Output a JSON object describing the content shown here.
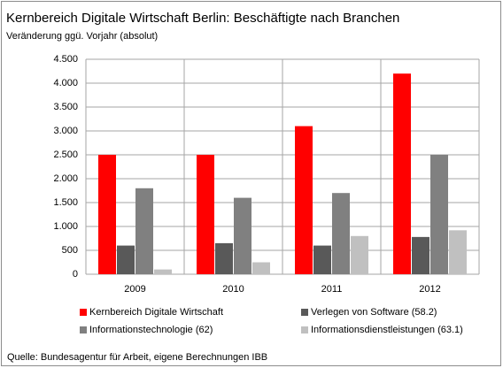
{
  "chart_data": {
    "type": "bar",
    "title": "Kernbereich Digitale Wirtschaft Berlin: Beschäftigte nach Branchen",
    "subtitle": "Veränderung ggü. Vorjahr (absolut)",
    "source": "Quelle: Bundesagentur für Arbeit, eigene Berechnungen IBB",
    "categories": [
      "2009",
      "2010",
      "2011",
      "2012"
    ],
    "series": [
      {
        "name": "Kernbereich Digitale Wirtschaft",
        "color": "#ff0000",
        "values": [
          2500,
          2500,
          3100,
          4200
        ]
      },
      {
        "name": "Verlegen von Software (58.2)",
        "color": "#595959",
        "values": [
          600,
          650,
          600,
          780
        ]
      },
      {
        "name": "Informationstechnologie (62)",
        "color": "#808080",
        "values": [
          1800,
          1600,
          1700,
          2500
        ]
      },
      {
        "name": "Informationsdienstleistungen (63.1)",
        "color": "#c0c0c0",
        "values": [
          100,
          250,
          800,
          920
        ]
      }
    ],
    "ylim": [
      0,
      4500
    ],
    "yticks": [
      0,
      {
        "value": 500,
        "label": "500"
      },
      {
        "value": 1000,
        "label": "1.000"
      },
      {
        "value": 1500,
        "label": "1.500"
      },
      {
        "value": 2000,
        "label": "2.000"
      },
      {
        "value": 2500,
        "label": "2.500"
      },
      {
        "value": 3000,
        "label": "3.000"
      },
      {
        "value": 3500,
        "label": "3.500"
      },
      {
        "value": 4000,
        "label": "4.000"
      },
      {
        "value": 4500,
        "label": "4.500"
      }
    ],
    "grid": true
  }
}
